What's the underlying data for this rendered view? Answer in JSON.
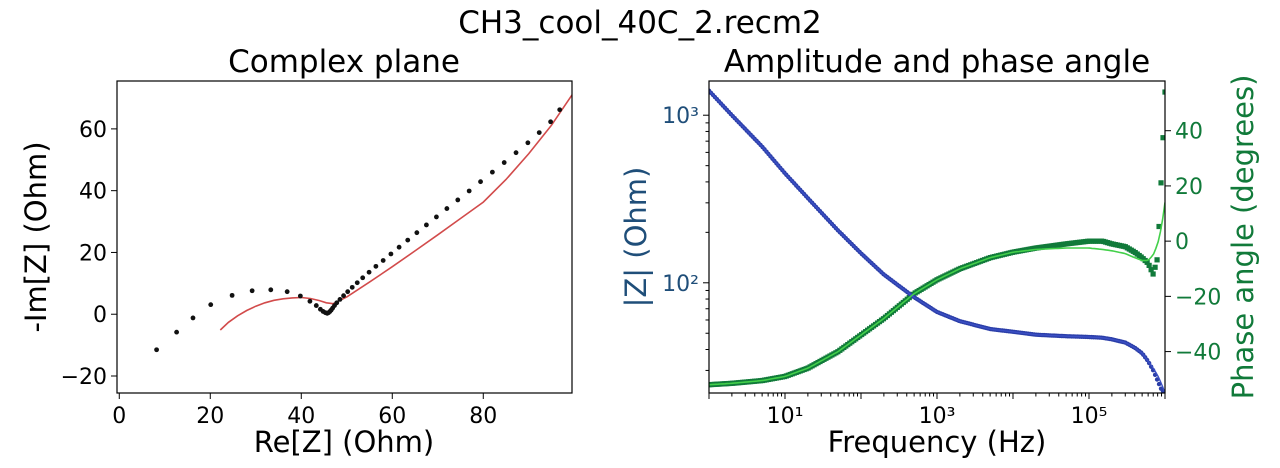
{
  "suptitle": "CH3_cool_40C_2.recm2",
  "colors": {
    "data_points": "#111111",
    "fit_line": "#d24b4b",
    "amplitude": "#2b3ea8",
    "amplitude_label": "#1f4e79",
    "phase": "#117a3a",
    "phase_fit": "#43d04a"
  },
  "chart_data": [
    {
      "type": "scatter",
      "title": "Complex plane",
      "xlabel": "Re[Z] (Ohm)",
      "ylabel": "-Im[Z] (Ohm)",
      "xlim": [
        -0.5,
        99.5
      ],
      "ylim": [
        -25.5,
        75.5
      ],
      "xticks": [
        0,
        20,
        40,
        60,
        80
      ],
      "yticks": [
        -20,
        0,
        20,
        40,
        60
      ],
      "xtick_labels": [
        "0",
        "20",
        "40",
        "60",
        "80"
      ],
      "ytick_labels": [
        "−20",
        "0",
        "20",
        "40",
        "60"
      ],
      "series": [
        {
          "kind": "points",
          "x": [
            8.2,
            12.6,
            16.2,
            20.1,
            24.8,
            29.2,
            33.3,
            36.9,
            39.8,
            41.9,
            43.3,
            44.2,
            44.8,
            45.3,
            45.7,
            46.0,
            46.3,
            46.6,
            46.9,
            47.3,
            47.8,
            48.5,
            49.3,
            50.2,
            51.2,
            52.3,
            53.5,
            54.9,
            56.4,
            58.0,
            59.7,
            61.5,
            63.4,
            65.4,
            67.5,
            69.7,
            72.0,
            74.4,
            76.9,
            79.4,
            82.0,
            84.6,
            87.2,
            89.8,
            92.3,
            94.8,
            96.8
          ],
          "y": [
            -11.5,
            -5.8,
            -1.2,
            3.1,
            6.1,
            7.6,
            7.9,
            7.3,
            5.9,
            4.2,
            2.8,
            1.6,
            0.9,
            0.5,
            0.3,
            0.5,
            0.9,
            1.4,
            2.0,
            2.8,
            3.7,
            4.8,
            6.0,
            7.3,
            8.7,
            10.2,
            11.8,
            13.6,
            15.5,
            17.4,
            19.5,
            21.7,
            24.0,
            26.4,
            28.9,
            31.5,
            34.2,
            37.0,
            39.9,
            42.9,
            46.0,
            49.1,
            52.3,
            55.5,
            58.8,
            62.3,
            66.2
          ]
        },
        {
          "kind": "fit",
          "x": [
            22.2,
            24.0,
            26.0,
            28.0,
            30.0,
            32.0,
            34.0,
            36.0,
            38.0,
            40.0,
            42.0,
            44.0,
            45.5,
            47.0,
            50.0,
            55.0,
            60.0,
            65.0,
            70.0,
            75.0,
            80.0,
            85.0,
            90.0,
            95.0,
            99.5
          ],
          "y": [
            -5.1,
            -2.6,
            -0.5,
            1.2,
            2.6,
            3.7,
            4.5,
            5.0,
            5.3,
            5.4,
            5.1,
            4.4,
            3.7,
            3.4,
            5.6,
            10.4,
            15.4,
            20.5,
            25.7,
            31.0,
            36.3,
            43.6,
            52.0,
            61.2,
            71.0
          ]
        }
      ]
    },
    {
      "type": "line",
      "title": "Amplitude and phase angle",
      "xlabel": "Frequency (Hz)",
      "ylabel": "|Z| (Ohm)",
      "y2label": "Phase angle (degrees)",
      "xscale": "log",
      "yscale": "log",
      "xlim": [
        1,
        1000000
      ],
      "ylim": [
        22,
        1600
      ],
      "y2lim": [
        -55,
        58
      ],
      "xticks": [
        10,
        1000,
        100000
      ],
      "xtick_labels": [
        "10¹",
        "10³",
        "10⁵"
      ],
      "yticks": [
        100,
        1000
      ],
      "ytick_labels": [
        "10²",
        "10³"
      ],
      "y2ticks": [
        -40,
        -20,
        0,
        20,
        40
      ],
      "y2tick_labels": [
        "−40",
        "−20",
        "0",
        "20",
        "40"
      ],
      "amplitude": {
        "freq": [
          1,
          2,
          5,
          10,
          20,
          50,
          100,
          200,
          500,
          1000,
          2000,
          5000,
          10000,
          20000,
          50000,
          100000,
          150000,
          200000,
          300000,
          400000,
          500000,
          600000,
          700000,
          800000,
          900000,
          1000000
        ],
        "z": [
          1400,
          1000,
          650,
          450,
          320,
          205,
          150,
          112,
          82,
          67,
          59,
          53,
          51,
          49,
          48,
          47.5,
          47,
          46,
          44,
          41,
          38,
          34,
          30,
          26,
          23,
          22
        ],
        "z_fit": [
          1400,
          1000,
          650,
          450,
          320,
          205,
          150,
          112,
          82,
          67,
          59,
          53,
          51,
          49,
          48,
          47.5,
          47,
          46,
          44,
          41,
          38,
          34,
          31,
          28,
          25,
          22
        ]
      },
      "phase": {
        "freq": [
          1,
          2,
          5,
          10,
          20,
          50,
          100,
          200,
          500,
          1000,
          2000,
          5000,
          10000,
          20000,
          50000,
          100000,
          150000,
          200000,
          300000,
          400000,
          500000,
          600000,
          700000,
          800000,
          900000,
          1000000
        ],
        "deg": [
          -52,
          -51.5,
          -50.5,
          -49,
          -46,
          -40,
          -34,
          -28,
          -19,
          -14,
          -10,
          -6,
          -4,
          -2.5,
          -1,
          0,
          0,
          -1,
          -2,
          -4,
          -6,
          -8,
          -12,
          -6,
          25,
          54
        ],
        "deg_fit": [
          -52,
          -51.5,
          -50.5,
          -49,
          -46,
          -40,
          -34,
          -28,
          -19,
          -14,
          -10,
          -6,
          -4,
          -3,
          -2.5,
          -2.5,
          -3,
          -3.5,
          -4.5,
          -6,
          -7,
          -7,
          -5,
          -1,
          5,
          14
        ]
      }
    }
  ]
}
